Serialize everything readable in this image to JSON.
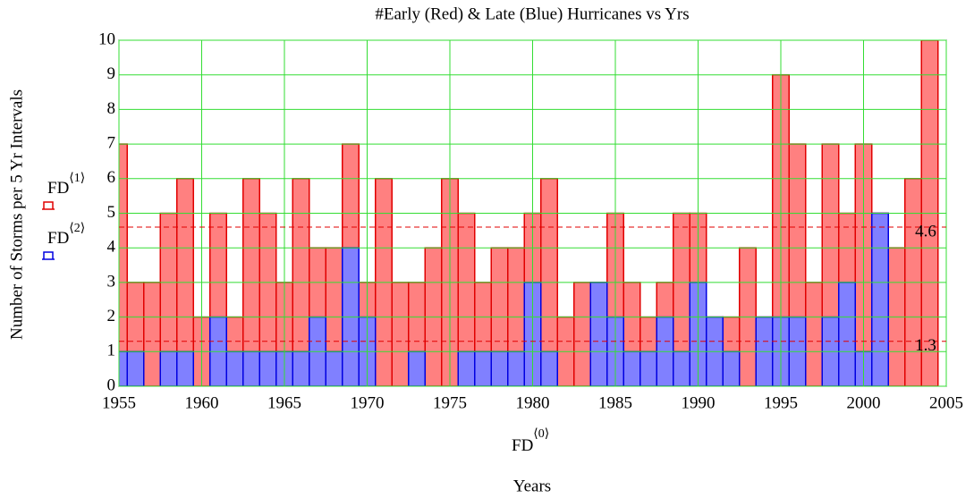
{
  "chart_data": {
    "type": "bar",
    "title": "#Early (Red) & Late (Blue) Hurricanes vs Yrs",
    "ylabel": "Number of Storms per 5 Yr Intervals",
    "x_expression": {
      "text": "FD",
      "sup": "⟨0⟩"
    },
    "xlabel": "Years",
    "x": [
      1955,
      1956,
      1957,
      1958,
      1959,
      1960,
      1961,
      1962,
      1963,
      1964,
      1965,
      1966,
      1967,
      1968,
      1969,
      1970,
      1971,
      1972,
      1973,
      1974,
      1975,
      1976,
      1977,
      1978,
      1979,
      1980,
      1981,
      1982,
      1983,
      1984,
      1985,
      1986,
      1987,
      1988,
      1989,
      1990,
      1991,
      1992,
      1993,
      1994,
      1995,
      1996,
      1997,
      1998,
      1999,
      2000,
      2001,
      2002,
      2003,
      2004
    ],
    "series": [
      {
        "name": "FD",
        "name_sup": "⟨1⟩",
        "color": "#ff8080",
        "edge": "#e00000",
        "values": [
          7,
          3,
          3,
          5,
          6,
          2,
          5,
          2,
          6,
          5,
          3,
          6,
          4,
          4,
          7,
          3,
          6,
          3,
          3,
          4,
          6,
          5,
          3,
          4,
          4,
          5,
          6,
          2,
          3,
          3,
          5,
          3,
          2,
          3,
          5,
          5,
          2,
          2,
          4,
          2,
          9,
          7,
          3,
          7,
          5,
          7,
          5,
          4,
          6,
          10
        ]
      },
      {
        "name": "FD",
        "name_sup": "⟨2⟩",
        "color": "#8080ff",
        "edge": "#0000e0",
        "values": [
          1,
          1,
          0,
          1,
          1,
          0,
          2,
          1,
          1,
          1,
          1,
          1,
          2,
          1,
          4,
          2,
          0,
          0,
          1,
          0,
          0,
          1,
          1,
          1,
          1,
          3,
          1,
          0,
          0,
          3,
          2,
          1,
          1,
          2,
          1,
          3,
          2,
          1,
          0,
          2,
          2,
          2,
          0,
          2,
          3,
          1,
          5,
          0,
          0,
          0
        ]
      }
    ],
    "hlines": [
      4.6,
      1.3
    ],
    "hline_color": "#e00000",
    "xlim": [
      1955,
      2005
    ],
    "xticks": [
      1955,
      1960,
      1965,
      1970,
      1975,
      1980,
      1985,
      1990,
      1995,
      2000,
      2005
    ],
    "ylim": [
      0,
      10
    ],
    "yticks": [
      0,
      1,
      2,
      3,
      4,
      5,
      6,
      7,
      8,
      9,
      10
    ],
    "grid": true
  }
}
